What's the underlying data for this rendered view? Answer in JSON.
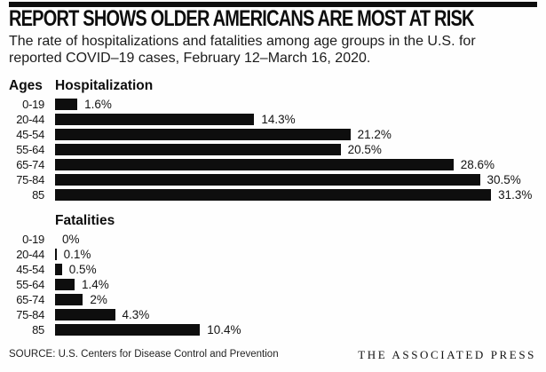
{
  "header": {
    "title": "REPORT SHOWS OLDER AMERICANS ARE MOST AT RISK",
    "subtitle": "The rate of hospitalizations and fatalities among age groups in the U.S. for\nreported COVID–19 cases, February 12–March 16, 2020."
  },
  "ages_column_header": "Ages",
  "chart_data": [
    {
      "type": "bar",
      "orientation": "horizontal",
      "title": "Hospitalization",
      "categories": [
        "0-19",
        "20-44",
        "45-54",
        "55-64",
        "65-74",
        "75-84",
        "85"
      ],
      "values": [
        1.6,
        14.3,
        21.2,
        20.5,
        28.6,
        30.5,
        31.3
      ],
      "value_labels": [
        "1.6%",
        "14.3%",
        "21.2%",
        "20.5%",
        "28.6%",
        "30.5%",
        "31.3%"
      ],
      "xlim": [
        0,
        31.3
      ],
      "bar_color": "#0e0e0e",
      "grid": false,
      "legend": "none"
    },
    {
      "type": "bar",
      "orientation": "horizontal",
      "title": "Fatalities",
      "categories": [
        "0-19",
        "20-44",
        "45-54",
        "55-64",
        "65-74",
        "75-84",
        "85"
      ],
      "values": [
        0,
        0.1,
        0.5,
        1.4,
        2,
        4.3,
        10.4
      ],
      "value_labels": [
        "0%",
        "0.1%",
        "0.5%",
        "1.4%",
        "2%",
        "4.3%",
        "10.4%"
      ],
      "xlim": [
        0,
        31.3
      ],
      "bar_color": "#0e0e0e",
      "grid": false,
      "legend": "none"
    }
  ],
  "footer": {
    "source": "SOURCE: U.S. Centers for Disease Control and Prevention",
    "credit": "THE ASSOCIATED PRESS"
  },
  "colors": {
    "bar": "#0e0e0e",
    "top_rule": "#0e0e0e",
    "background": "#fefefe"
  }
}
